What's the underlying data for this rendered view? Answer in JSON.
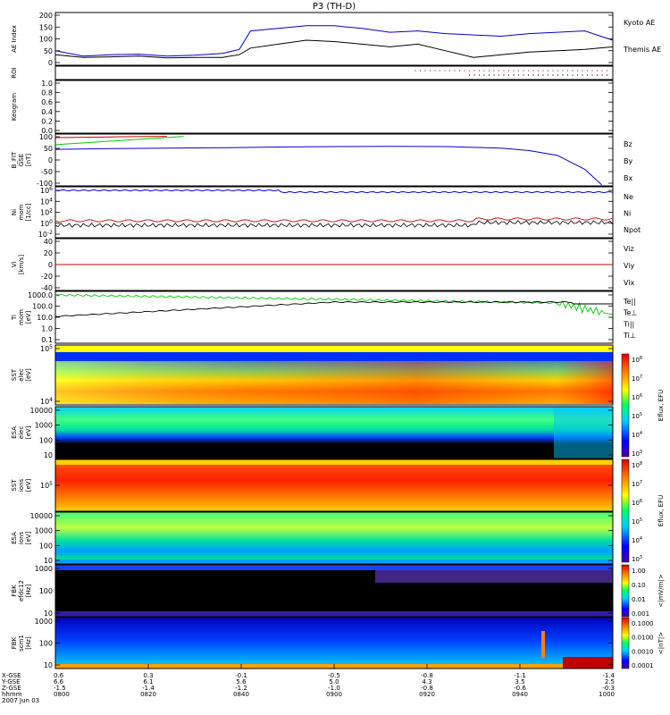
{
  "chart_data": {
    "type": "line",
    "title": "P3 (TH-D)",
    "panels": [
      {
        "id": "ae",
        "ylabel": "AE Index",
        "yticks": [
          "200",
          "150",
          "100",
          "50",
          "0"
        ],
        "ylim": [
          0,
          200
        ],
        "legend": [
          {
            "name": "Kyoto AE",
            "color": "#0000cc"
          },
          {
            "name": "Themis AE",
            "color": "#000000"
          }
        ],
        "series": [
          {
            "name": "Kyoto AE",
            "color": "#0000cc",
            "x": [
              0,
              0.05,
              0.1,
              0.15,
              0.2,
              0.25,
              0.3,
              0.33,
              0.35,
              0.4,
              0.45,
              0.5,
              0.55,
              0.6,
              0.65,
              0.7,
              0.75,
              0.8,
              0.85,
              0.9,
              0.95,
              1.0
            ],
            "y": [
              55,
              35,
              40,
              42,
              35,
              38,
              45,
              60,
              130,
              140,
              150,
              150,
              140,
              125,
              130,
              120,
              115,
              110,
              120,
              125,
              130,
              95
            ]
          },
          {
            "name": "Themis AE",
            "color": "#000000",
            "x": [
              0,
              0.05,
              0.1,
              0.15,
              0.2,
              0.25,
              0.3,
              0.33,
              0.35,
              0.4,
              0.45,
              0.5,
              0.55,
              0.6,
              0.65,
              0.7,
              0.75,
              0.8,
              0.85,
              0.9,
              0.95,
              1.0
            ],
            "y": [
              40,
              30,
              32,
              35,
              28,
              30,
              30,
              40,
              65,
              80,
              95,
              90,
              80,
              70,
              80,
              55,
              30,
              40,
              50,
              55,
              60,
              70
            ]
          }
        ]
      },
      {
        "id": "roi",
        "ylabel": "ROI",
        "yticks": [],
        "ylim": [
          0,
          1
        ]
      },
      {
        "id": "keogram",
        "ylabel": "Keogram",
        "yticks": [
          "1.0",
          "0.8",
          "0.6",
          "0.4",
          "0.2",
          "0.0"
        ],
        "ylim": [
          0,
          1
        ]
      },
      {
        "id": "bfit",
        "ylabel": "B_FIT\nGSE\n[nT]",
        "yticks": [
          "100",
          "50",
          "0",
          "-50",
          "-100"
        ],
        "ylim": [
          -110,
          110
        ],
        "legend": [
          {
            "name": "Bz",
            "color": "#cc0000"
          },
          {
            "name": "By",
            "color": "#00cc00"
          },
          {
            "name": "Bx",
            "color": "#0000cc"
          }
        ],
        "series": [
          {
            "name": "Bz",
            "color": "#cc0000",
            "x": [
              0,
              0.1,
              0.2
            ],
            "y": [
              95,
              98,
              100
            ]
          },
          {
            "name": "By",
            "color": "#00cc00",
            "x": [
              0,
              0.1,
              0.23
            ],
            "y": [
              65,
              80,
              100
            ]
          },
          {
            "name": "Bx",
            "color": "#0000cc",
            "x": [
              0,
              0.1,
              0.2,
              0.3,
              0.4,
              0.5,
              0.6,
              0.7,
              0.8,
              0.85,
              0.9,
              0.95,
              0.98
            ],
            "y": [
              45,
              48,
              50,
              52,
              55,
              57,
              58,
              57,
              50,
              40,
              20,
              -40,
              -105
            ]
          }
        ]
      },
      {
        "id": "ni",
        "ylabel": "Ni\nmom\n[1/cc]",
        "yticks": [
          "10^6",
          "10^4",
          "10^2",
          "10^0",
          "10^-2"
        ],
        "ylim": [
          -2,
          7
        ],
        "legend": [
          {
            "name": "Ne",
            "color": "#cc0000"
          },
          {
            "name": "Ni",
            "color": "#000000"
          },
          {
            "name": "Npot",
            "color": "#0000cc"
          }
        ]
      },
      {
        "id": "vi",
        "ylabel": "Vi\n[km/s]",
        "yticks": [
          "40",
          "20",
          "0",
          "-20",
          "-40"
        ],
        "ylim": [
          -50,
          50
        ],
        "legend": [
          {
            "name": "Viz",
            "color": "#cc0000"
          },
          {
            "name": "Viy",
            "color": "#00cc00"
          },
          {
            "name": "Vix",
            "color": "#0000cc"
          }
        ]
      },
      {
        "id": "ti",
        "ylabel": "Ti\nmom\n[eV]",
        "yticks": [
          "1000.0",
          "100.0",
          "10.0",
          "1.0",
          "0.1"
        ],
        "ylim": [
          -1.2,
          3.6
        ],
        "legend": [
          {
            "name": "Te||",
            "color": "#000000"
          },
          {
            "name": "Te⊥",
            "color": "#cc0000"
          },
          {
            "name": "Ti||",
            "color": "#00cc00"
          },
          {
            "name": "Ti⊥",
            "color": "#0000cc"
          }
        ]
      },
      {
        "id": "sst1",
        "ylabel": "SST\nelec\n[eV]",
        "yticks": [
          "10^5",
          "10^4"
        ]
      },
      {
        "id": "esa1",
        "ylabel": "ESA\nelec\n[eV]",
        "yticks": [
          "10000",
          "1000",
          "100",
          "10"
        ]
      },
      {
        "id": "sst2",
        "ylabel": "SST\nions\n[eV]",
        "yticks": [
          "10^5"
        ]
      },
      {
        "id": "esa2",
        "ylabel": "ESA\nions\n[eV]",
        "yticks": [
          "10000",
          "1000",
          "100",
          "10"
        ]
      },
      {
        "id": "fbk1",
        "ylabel": "FBK\nefdc12\n[Hz]",
        "yticks": [
          "1000",
          "100",
          "10"
        ]
      },
      {
        "id": "fbk2",
        "ylabel": "FBK\nscm1\n[Hz]",
        "yticks": [
          "1000",
          "100",
          "10"
        ]
      }
    ],
    "colorbars": [
      {
        "id": "eflux1",
        "label": "Eflux, EFU",
        "ticks": [
          "10^8",
          "10^7",
          "10^6",
          "10^5",
          "10^4",
          "10^3"
        ]
      },
      {
        "id": "eflux2",
        "label": "Eflux, EFU",
        "ticks": [
          "10^8",
          "10^7",
          "10^6",
          "10^5",
          "10^4",
          "10^3"
        ]
      },
      {
        "id": "fbk1",
        "label": "<|mV/m|>",
        "ticks": [
          "1.00",
          "0.10",
          "0.01",
          "0.001"
        ]
      },
      {
        "id": "fbk2",
        "label": "<|nT|>",
        "ticks": [
          "0.1000",
          "0.0100",
          "0.0010",
          "0.0001"
        ]
      }
    ],
    "xaxis": {
      "row_labels": [
        "X-GSE",
        "Y-GSE",
        "Z-GSE",
        "hhmm",
        "2007 Jun 03"
      ],
      "ticks": [
        {
          "x": "0.6",
          "y": "6.6",
          "z": "-1.5",
          "t": "0800"
        },
        {
          "x": "0.3",
          "y": "6.1",
          "z": "-1.4",
          "t": "0820"
        },
        {
          "x": "-0.1",
          "y": "5.6",
          "z": "-1.2",
          "t": "0840"
        },
        {
          "x": "-0.5",
          "y": "5.0",
          "z": "-1.0",
          "t": "0900"
        },
        {
          "x": "-0.8",
          "y": "4.3",
          "z": "-0.8",
          "t": "0920"
        },
        {
          "x": "-1.1",
          "y": "3.5",
          "z": "-0.6",
          "t": "0940"
        },
        {
          "x": "-1.4",
          "y": "2.5",
          "z": "-0.3",
          "t": "1000"
        }
      ]
    }
  }
}
